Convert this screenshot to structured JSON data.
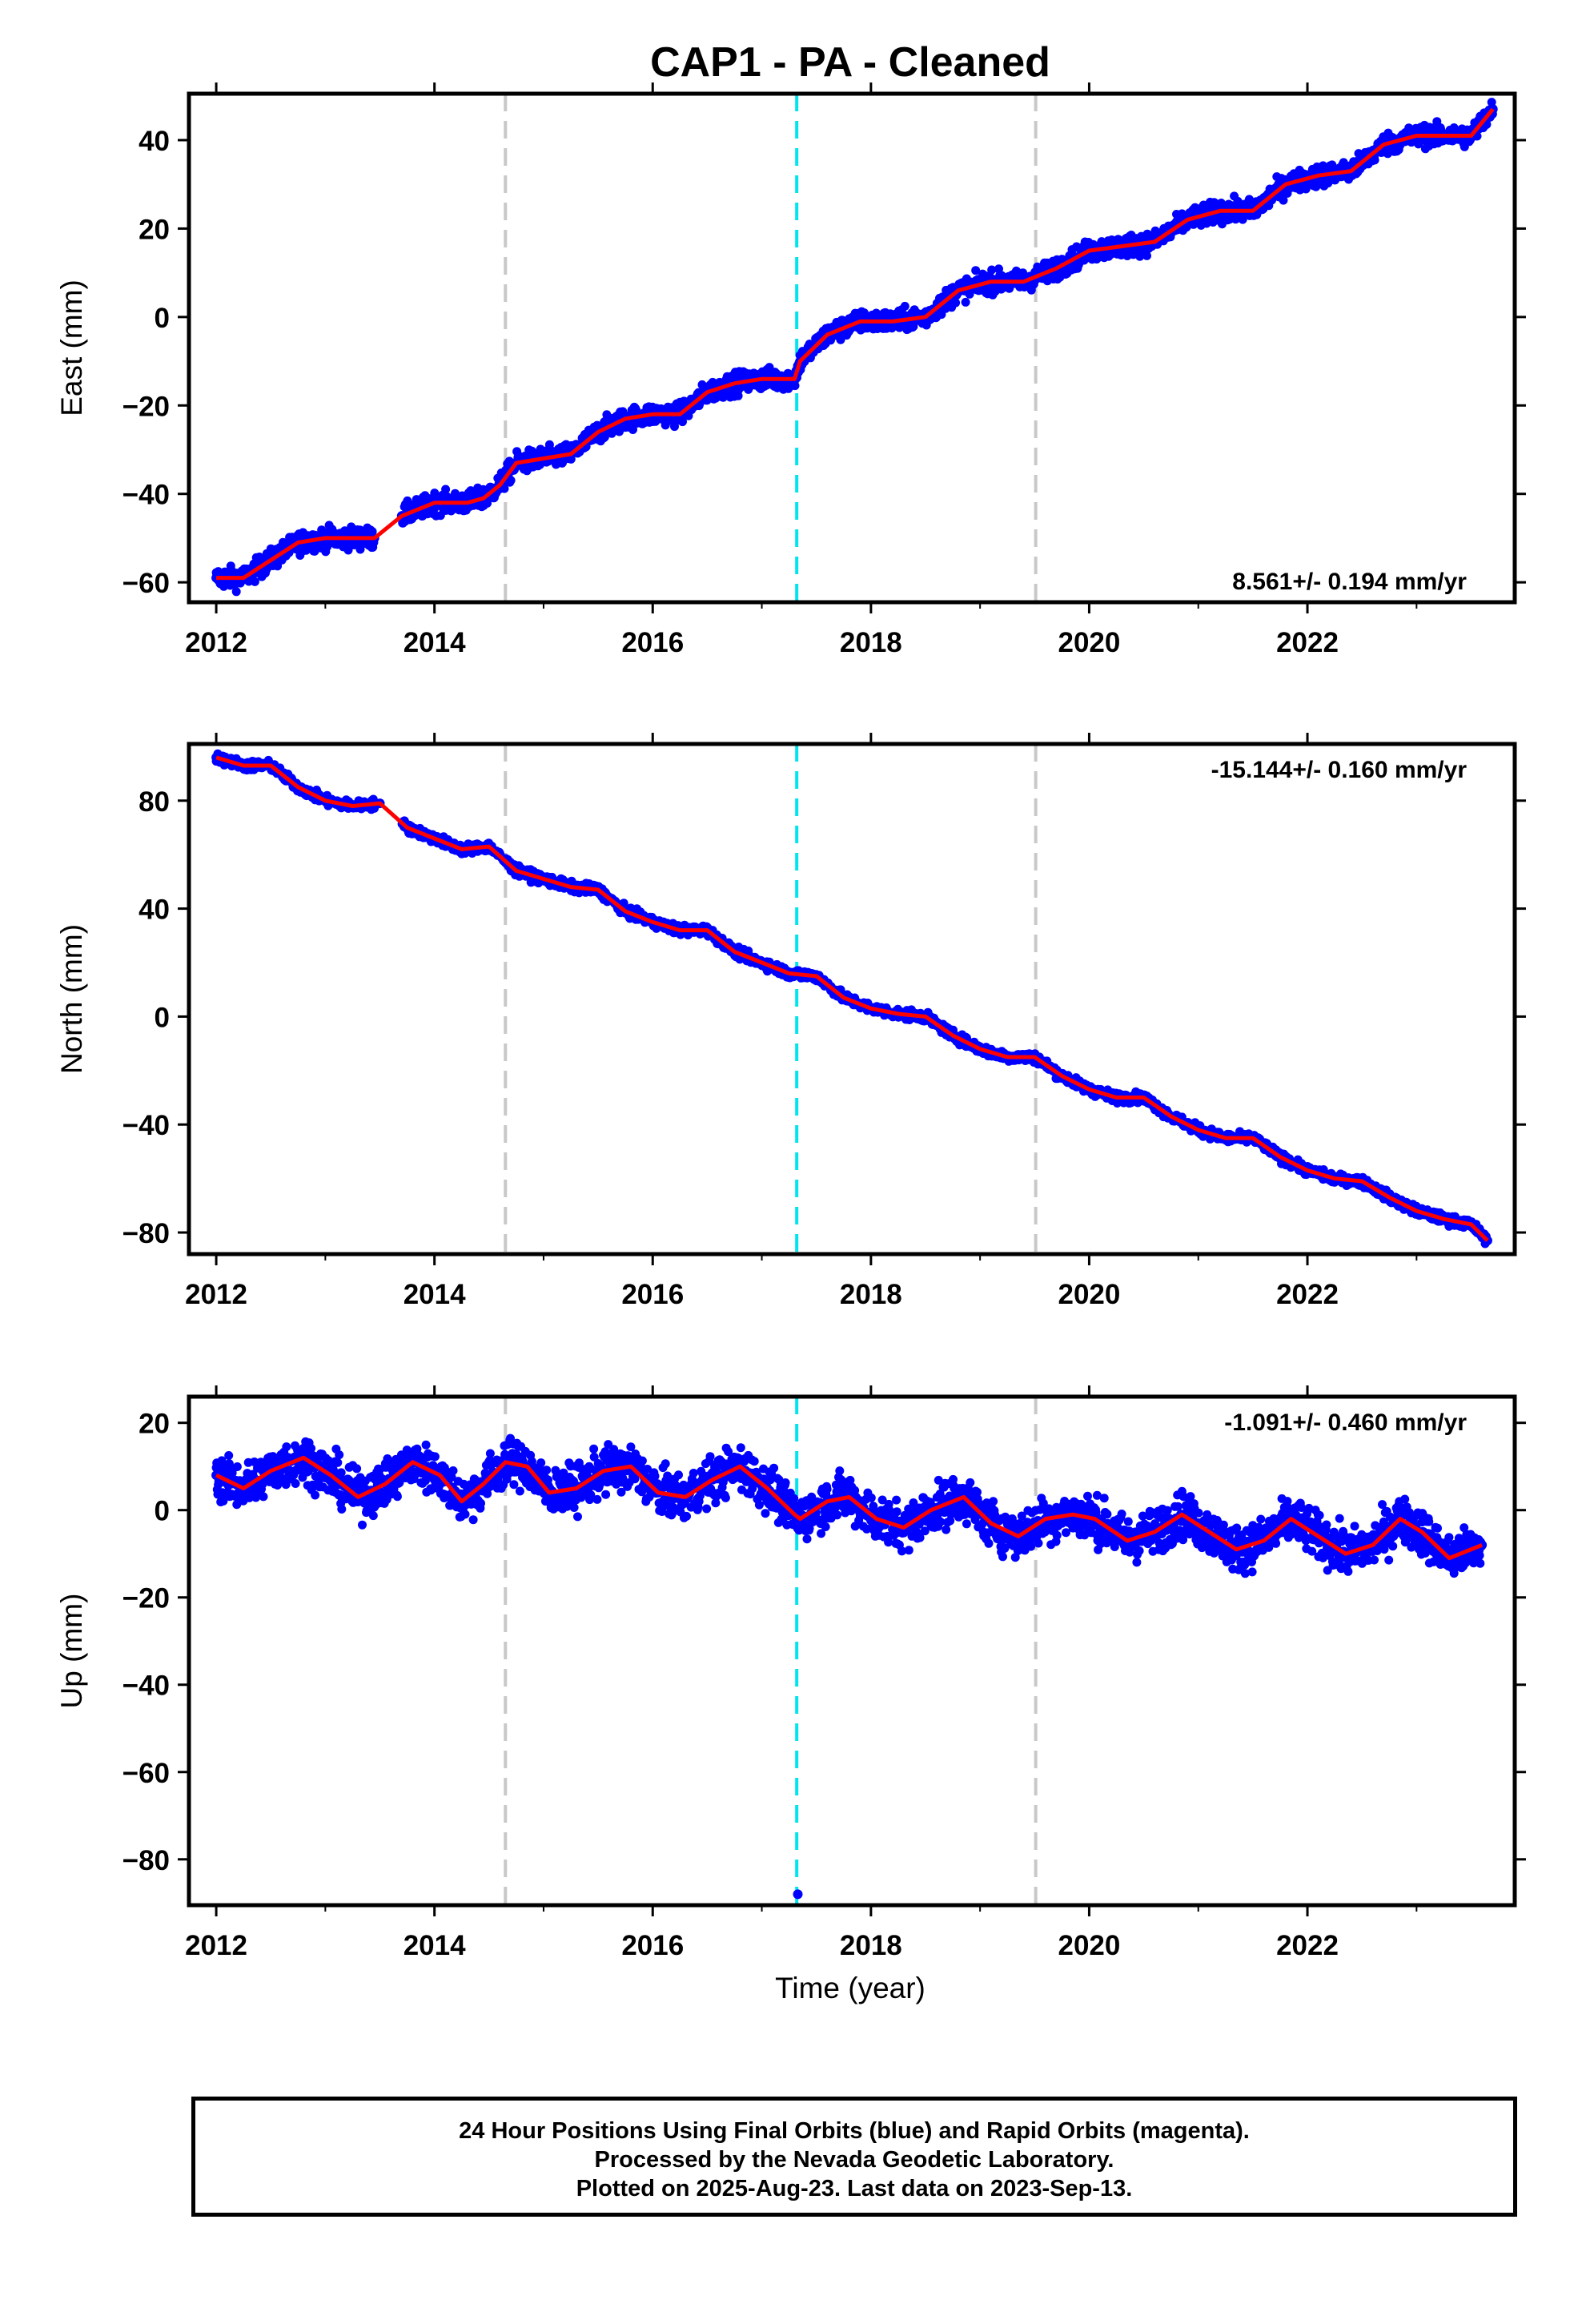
{
  "title": "CAP1  - PA - Cleaned",
  "xlabel": "Time (year)",
  "caption": {
    "line1": "24 Hour Positions Using Final Orbits (blue) and Rapid Orbits (magenta).",
    "line2": "Processed by the Nevada Geodetic Laboratory.",
    "line3": "Plotted on 2025-Aug-23. Last data on 2023-Sep-13."
  },
  "colors": {
    "points": "#0000ff",
    "model": "#ff0000",
    "equipment_change": "#c8c8c8",
    "event": "#00e5ee"
  },
  "chart_data": [
    {
      "type": "scatter",
      "component": "East",
      "ylabel": "East (mm)",
      "rate_label": "8.561+/- 0.194 mm/yr",
      "rate_position": "bottom-right",
      "xlim": [
        2011.75,
        2023.9
      ],
      "ylim": [
        -64.5,
        50.5
      ],
      "yticks": [
        -60,
        -40,
        -20,
        0,
        20,
        40
      ],
      "xticks": [
        2012,
        2014,
        2016,
        2018,
        2020,
        2022
      ],
      "grid": false,
      "vlines": [
        {
          "x": 2014.65,
          "kind": "equipment_change"
        },
        {
          "x": 2017.32,
          "kind": "event"
        },
        {
          "x": 2019.51,
          "kind": "equipment_change"
        }
      ],
      "series": [
        {
          "role": "daily positions",
          "x": [
            2012.0,
            2012.25,
            2012.5,
            2012.75,
            2013.0,
            2013.25,
            2013.45,
            2013.7,
            2014.0,
            2014.3,
            2014.45,
            2014.6,
            2014.75,
            2015.0,
            2015.25,
            2015.5,
            2015.75,
            2016.0,
            2016.25,
            2016.5,
            2016.75,
            2017.0,
            2017.3,
            2017.35,
            2017.6,
            2017.9,
            2018.2,
            2018.5,
            2018.8,
            2019.1,
            2019.4,
            2019.7,
            2020.0,
            2020.3,
            2020.6,
            2020.9,
            2021.2,
            2021.5,
            2021.8,
            2022.1,
            2022.4,
            2022.7,
            2023.0,
            2023.3,
            2023.5,
            2023.7
          ],
          "y": [
            -59,
            -59,
            -55,
            -51,
            -50,
            -50,
            -50,
            -45,
            -42,
            -42,
            -41,
            -38,
            -33,
            -32,
            -31,
            -26,
            -23,
            -22,
            -22,
            -17,
            -15,
            -14,
            -14,
            -10,
            -4,
            -1,
            -1,
            0,
            6,
            8,
            8,
            11,
            15,
            16,
            17,
            22,
            24,
            24,
            30,
            32,
            33,
            39,
            41,
            41,
            41,
            47
          ]
        },
        {
          "role": "model fit",
          "x": [
            2012.0,
            2012.25,
            2012.5,
            2012.75,
            2013.0,
            2013.25,
            2013.45,
            2013.7,
            2014.0,
            2014.3,
            2014.45,
            2014.6,
            2014.75,
            2015.0,
            2015.25,
            2015.5,
            2015.75,
            2016.0,
            2016.25,
            2016.5,
            2016.75,
            2017.0,
            2017.3,
            2017.35,
            2017.6,
            2017.9,
            2018.2,
            2018.5,
            2018.8,
            2019.1,
            2019.4,
            2019.7,
            2020.0,
            2020.3,
            2020.6,
            2020.9,
            2021.2,
            2021.5,
            2021.8,
            2022.1,
            2022.4,
            2022.7,
            2023.0,
            2023.3,
            2023.5,
            2023.7
          ],
          "y": [
            -59,
            -59,
            -55,
            -51,
            -50,
            -50,
            -50,
            -45,
            -42,
            -42,
            -41,
            -38,
            -33,
            -32,
            -31,
            -26,
            -23,
            -22,
            -22,
            -17,
            -15,
            -14,
            -14,
            -10,
            -4,
            -1,
            -1,
            0,
            6,
            8,
            8,
            11,
            15,
            16,
            17,
            22,
            24,
            24,
            30,
            32,
            33,
            39,
            41,
            41,
            41,
            47
          ]
        }
      ]
    },
    {
      "type": "scatter",
      "component": "North",
      "ylabel": "North (mm)",
      "rate_label": "-15.144+/- 0.160 mm/yr",
      "rate_position": "top-right",
      "xlim": [
        2011.75,
        2023.9
      ],
      "ylim": [
        -88,
        101
      ],
      "yticks": [
        -80,
        -40,
        0,
        40,
        80
      ],
      "xticks": [
        2012,
        2014,
        2016,
        2018,
        2020,
        2022
      ],
      "grid": false,
      "vlines": [
        {
          "x": 2014.65,
          "kind": "equipment_change"
        },
        {
          "x": 2017.32,
          "kind": "event"
        },
        {
          "x": 2019.51,
          "kind": "equipment_change"
        }
      ],
      "series": [
        {
          "role": "daily positions",
          "x": [
            2012.0,
            2012.25,
            2012.5,
            2012.75,
            2013.0,
            2013.25,
            2013.5,
            2013.75,
            2014.0,
            2014.25,
            2014.5,
            2014.75,
            2015.0,
            2015.25,
            2015.5,
            2015.75,
            2016.0,
            2016.25,
            2016.5,
            2016.75,
            2017.0,
            2017.25,
            2017.5,
            2017.75,
            2018.0,
            2018.25,
            2018.5,
            2018.75,
            2019.0,
            2019.25,
            2019.5,
            2019.75,
            2020.0,
            2020.25,
            2020.5,
            2020.75,
            2021.0,
            2021.25,
            2021.5,
            2021.75,
            2022.0,
            2022.25,
            2022.5,
            2022.75,
            2023.0,
            2023.25,
            2023.5,
            2023.65
          ],
          "y": [
            96,
            93,
            93,
            85,
            80,
            78,
            79,
            70,
            66,
            62,
            63,
            54,
            51,
            48,
            47,
            39,
            35,
            32,
            32,
            24,
            20,
            16,
            15,
            7,
            3,
            1,
            0,
            -7,
            -12,
            -15,
            -15,
            -22,
            -27,
            -30,
            -30,
            -37,
            -42,
            -45,
            -45,
            -52,
            -57,
            -60,
            -61,
            -67,
            -72,
            -75,
            -77,
            -83
          ]
        },
        {
          "role": "model fit",
          "x": [
            2012.0,
            2012.25,
            2012.5,
            2012.75,
            2013.0,
            2013.25,
            2013.5,
            2013.75,
            2014.0,
            2014.25,
            2014.5,
            2014.75,
            2015.0,
            2015.25,
            2015.5,
            2015.75,
            2016.0,
            2016.25,
            2016.5,
            2016.75,
            2017.0,
            2017.25,
            2017.5,
            2017.75,
            2018.0,
            2018.25,
            2018.5,
            2018.75,
            2019.0,
            2019.25,
            2019.5,
            2019.75,
            2020.0,
            2020.25,
            2020.5,
            2020.75,
            2021.0,
            2021.25,
            2021.5,
            2021.75,
            2022.0,
            2022.25,
            2022.5,
            2022.75,
            2023.0,
            2023.25,
            2023.5,
            2023.65
          ],
          "y": [
            96,
            93,
            93,
            85,
            80,
            78,
            79,
            70,
            66,
            62,
            63,
            54,
            51,
            48,
            47,
            39,
            35,
            32,
            32,
            24,
            20,
            16,
            15,
            7,
            3,
            1,
            0,
            -7,
            -12,
            -15,
            -15,
            -22,
            -27,
            -30,
            -30,
            -37,
            -42,
            -45,
            -45,
            -52,
            -57,
            -60,
            -61,
            -67,
            -72,
            -75,
            -77,
            -83
          ]
        }
      ]
    },
    {
      "type": "scatter",
      "component": "Up",
      "ylabel": "Up (mm)",
      "rate_label": "-1.091+/- 0.460 mm/yr",
      "rate_position": "top-right",
      "xlim": [
        2011.75,
        2023.9
      ],
      "ylim": [
        -90.5,
        26
      ],
      "yticks": [
        -80,
        -60,
        -40,
        -20,
        0,
        20
      ],
      "xticks": [
        2012,
        2014,
        2016,
        2018,
        2020,
        2022
      ],
      "grid": false,
      "vlines": [
        {
          "x": 2014.65,
          "kind": "equipment_change"
        },
        {
          "x": 2017.32,
          "kind": "event"
        },
        {
          "x": 2019.51,
          "kind": "equipment_change"
        }
      ],
      "series": [
        {
          "role": "daily positions",
          "x": [
            2012.0,
            2012.25,
            2012.5,
            2012.8,
            2013.05,
            2013.3,
            2013.55,
            2013.8,
            2014.05,
            2014.25,
            2014.45,
            2014.65,
            2014.85,
            2015.05,
            2015.3,
            2015.55,
            2015.8,
            2016.05,
            2016.3,
            2016.55,
            2016.8,
            2017.05,
            2017.3,
            2017.35,
            2017.6,
            2017.8,
            2018.05,
            2018.3,
            2018.55,
            2018.85,
            2019.1,
            2019.35,
            2019.6,
            2019.85,
            2020.05,
            2020.35,
            2020.6,
            2020.85,
            2021.1,
            2021.35,
            2021.6,
            2021.85,
            2022.1,
            2022.35,
            2022.6,
            2022.85,
            2023.05,
            2023.3,
            2023.6,
            2017.33
          ],
          "y": [
            8,
            5,
            9,
            12,
            8,
            3,
            6,
            11,
            8,
            2,
            6,
            11,
            10,
            4,
            5,
            9,
            10,
            4,
            3,
            7,
            10,
            5,
            -1,
            -2,
            2,
            3,
            -2,
            -4,
            0,
            3,
            -3,
            -6,
            -2,
            -1,
            -2,
            -7,
            -5,
            -1,
            -5,
            -9,
            -7,
            -2,
            -6,
            -10,
            -8,
            -2,
            -5,
            -11,
            -8,
            -88
          ]
        },
        {
          "role": "model fit",
          "x": [
            2012.0,
            2012.25,
            2012.5,
            2012.8,
            2013.05,
            2013.3,
            2013.55,
            2013.8,
            2014.05,
            2014.25,
            2014.45,
            2014.65,
            2014.85,
            2015.05,
            2015.3,
            2015.55,
            2015.8,
            2016.05,
            2016.3,
            2016.55,
            2016.8,
            2017.05,
            2017.3,
            2017.35,
            2017.6,
            2017.8,
            2018.05,
            2018.3,
            2018.55,
            2018.85,
            2019.1,
            2019.35,
            2019.6,
            2019.85,
            2020.05,
            2020.35,
            2020.6,
            2020.85,
            2021.1,
            2021.35,
            2021.6,
            2021.85,
            2022.1,
            2022.35,
            2022.6,
            2022.85,
            2023.05,
            2023.3,
            2023.6
          ],
          "y": [
            8,
            5,
            9,
            12,
            8,
            3,
            6,
            11,
            8,
            2,
            6,
            11,
            10,
            4,
            5,
            9,
            10,
            4,
            3,
            7,
            10,
            5,
            -1,
            -2,
            2,
            3,
            -2,
            -4,
            0,
            3,
            -3,
            -6,
            -2,
            -1,
            -2,
            -7,
            -5,
            -1,
            -5,
            -9,
            -7,
            -2,
            -6,
            -10,
            -8,
            -2,
            -5,
            -11,
            -8
          ]
        }
      ]
    }
  ]
}
